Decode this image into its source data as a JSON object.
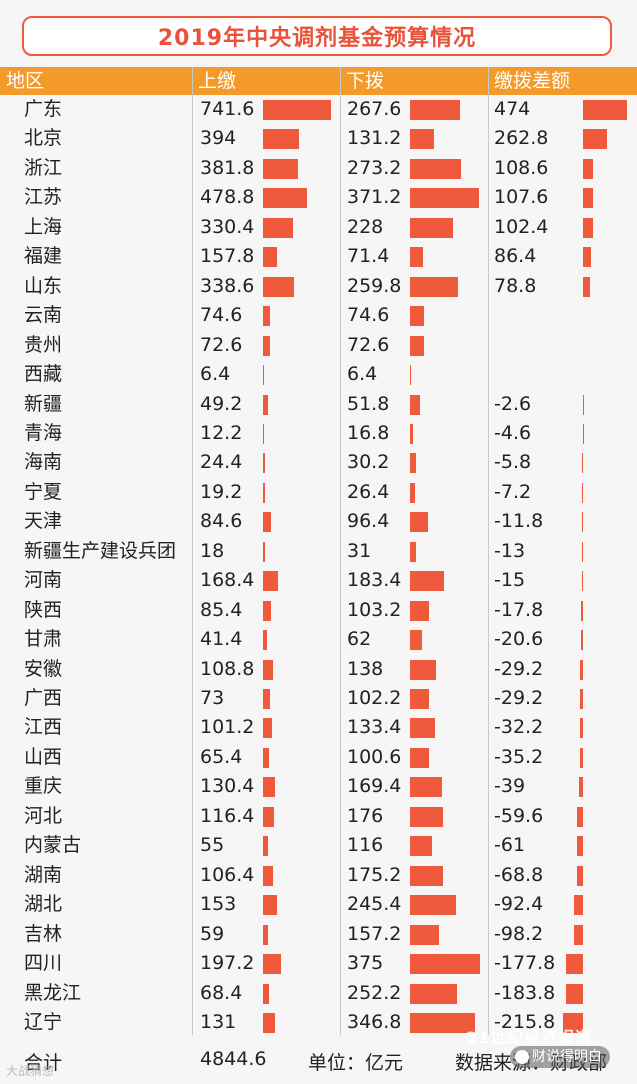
{
  "title": "2019年中央调剂基金预算情况",
  "headers": {
    "region": "地区",
    "pay": "上缴",
    "receive": "下拨",
    "diff": "缴拨差额"
  },
  "chart_data": {
    "type": "table",
    "title": "2019年中央调剂基金预算情况",
    "columns": [
      "地区",
      "上缴",
      "下拨",
      "缴拨差额"
    ],
    "rows": [
      {
        "region": "广东",
        "pay": "741.6",
        "receive": "267.6",
        "diff": "474"
      },
      {
        "region": "北京",
        "pay": "394",
        "receive": "131.2",
        "diff": "262.8"
      },
      {
        "region": "浙江",
        "pay": "381.8",
        "receive": "273.2",
        "diff": "108.6"
      },
      {
        "region": "江苏",
        "pay": "478.8",
        "receive": "371.2",
        "diff": "107.6"
      },
      {
        "region": "上海",
        "pay": "330.4",
        "receive": "228",
        "diff": "102.4"
      },
      {
        "region": "福建",
        "pay": "157.8",
        "receive": "71.4",
        "diff": "86.4"
      },
      {
        "region": "山东",
        "pay": "338.6",
        "receive": "259.8",
        "diff": "78.8"
      },
      {
        "region": "云南",
        "pay": "74.6",
        "receive": "74.6",
        "diff": ""
      },
      {
        "region": "贵州",
        "pay": "72.6",
        "receive": "72.6",
        "diff": ""
      },
      {
        "region": "西藏",
        "pay": "6.4",
        "receive": "6.4",
        "diff": ""
      },
      {
        "region": "新疆",
        "pay": "49.2",
        "receive": "51.8",
        "diff": "-2.6"
      },
      {
        "region": "青海",
        "pay": "12.2",
        "receive": "16.8",
        "diff": "-4.6"
      },
      {
        "region": "海南",
        "pay": "24.4",
        "receive": "30.2",
        "diff": "-5.8"
      },
      {
        "region": "宁夏",
        "pay": "19.2",
        "receive": "26.4",
        "diff": "-7.2"
      },
      {
        "region": "天津",
        "pay": "84.6",
        "receive": "96.4",
        "diff": "-11.8"
      },
      {
        "region": "新疆生产建设兵团",
        "pay": "18",
        "receive": "31",
        "diff": "-13"
      },
      {
        "region": "河南",
        "pay": "168.4",
        "receive": "183.4",
        "diff": "-15"
      },
      {
        "region": "陕西",
        "pay": "85.4",
        "receive": "103.2",
        "diff": "-17.8"
      },
      {
        "region": "甘肃",
        "pay": "41.4",
        "receive": "62",
        "diff": "-20.6"
      },
      {
        "region": "安徽",
        "pay": "108.8",
        "receive": "138",
        "diff": "-29.2"
      },
      {
        "region": "广西",
        "pay": "73",
        "receive": "102.2",
        "diff": "-29.2"
      },
      {
        "region": "江西",
        "pay": "101.2",
        "receive": "133.4",
        "diff": "-32.2"
      },
      {
        "region": "山西",
        "pay": "65.4",
        "receive": "100.6",
        "diff": "-35.2"
      },
      {
        "region": "重庆",
        "pay": "130.4",
        "receive": "169.4",
        "diff": "-39"
      },
      {
        "region": "河北",
        "pay": "116.4",
        "receive": "176",
        "diff": "-59.6"
      },
      {
        "region": "内蒙古",
        "pay": "55",
        "receive": "116",
        "diff": "-61"
      },
      {
        "region": "湖南",
        "pay": "106.4",
        "receive": "175.2",
        "diff": "-68.8"
      },
      {
        "region": "湖北",
        "pay": "153",
        "receive": "245.4",
        "diff": "-92.4"
      },
      {
        "region": "吉林",
        "pay": "59",
        "receive": "157.2",
        "diff": "-98.2"
      },
      {
        "region": "四川",
        "pay": "197.2",
        "receive": "375",
        "diff": "-177.8"
      },
      {
        "region": "黑龙江",
        "pay": "68.4",
        "receive": "252.2",
        "diff": "-183.8"
      },
      {
        "region": "辽宁",
        "pay": "131",
        "receive": "346.8",
        "diff": "-215.8"
      }
    ],
    "bar_color": "#f05a3c",
    "header_color": "#f39a2b"
  },
  "footer": {
    "total_label": "合计",
    "total_value": "4844.6",
    "unit": "单位：亿元",
    "source": "数据来源：财政部"
  },
  "watermarks": {
    "left": "大战猜想",
    "middle": "21世纪经济报道",
    "right": "财说得明白"
  }
}
